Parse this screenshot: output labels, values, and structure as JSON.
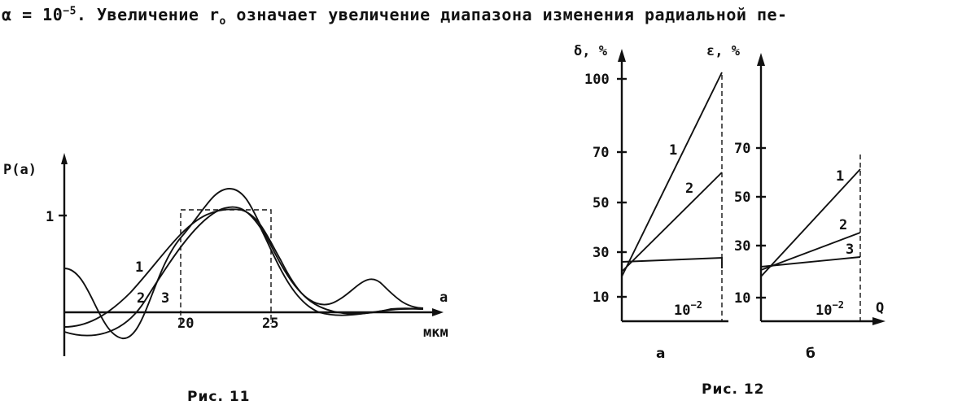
{
  "text": {
    "line_prefix": "α = 10",
    "line_exp": "−5",
    "line_mid": ". Увеличение r",
    "line_sub": "o",
    "line_suffix": " означает увеличение диапазона изменения радиальной пе-"
  },
  "fig11": {
    "caption": "Рис. 11",
    "ylabel": "P(a)",
    "ytick": "1",
    "xlabel": "a",
    "xunit": "мкм",
    "xticks": [
      "20",
      "25"
    ],
    "curve_labels": [
      "1",
      "2",
      "3"
    ]
  },
  "fig12": {
    "caption": "Рис. 12",
    "panel_a": {
      "label": "а",
      "ylabel": "δ, %",
      "yticks": [
        "100",
        "70",
        "50",
        "30",
        "10"
      ],
      "xmark": "10",
      "xmark_exp": "−2",
      "curve_labels": [
        "1",
        "2"
      ]
    },
    "panel_b": {
      "label": "б",
      "ylabel": "ε, %",
      "yticks": [
        "70",
        "50",
        "30",
        "10"
      ],
      "xmark": "10",
      "xmark_exp": "−2",
      "xlabel": "Q",
      "curve_labels": [
        "1",
        "2",
        "3"
      ]
    }
  }
}
